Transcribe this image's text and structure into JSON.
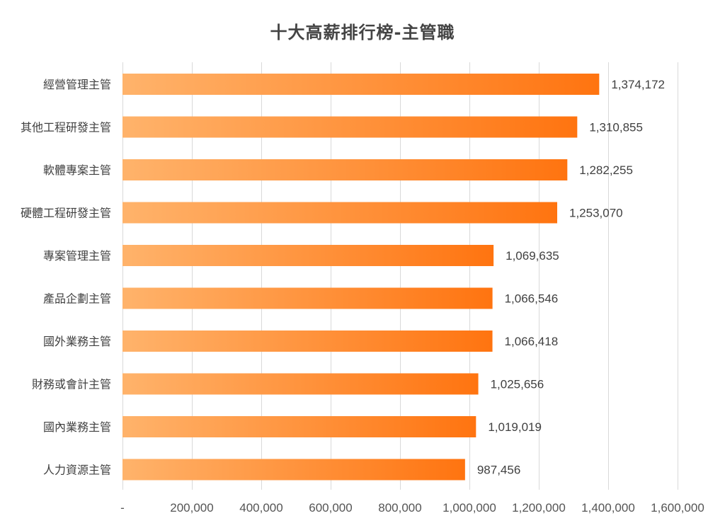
{
  "chart_data": {
    "type": "bar",
    "orientation": "horizontal",
    "title": "十大高薪排行榜-主管職",
    "xlabel": "",
    "ylabel": "",
    "categories": [
      "經營管理主管",
      "其他工程研發主管",
      "軟體專案主管",
      "硬體工程研發主管",
      "專案管理主管",
      "產品企劃主管",
      "國外業務主管",
      "財務或會計主管",
      "國內業務主管",
      "人力資源主管"
    ],
    "values": [
      1374172,
      1310855,
      1282255,
      1253070,
      1069635,
      1066546,
      1066418,
      1025656,
      1019019,
      987456
    ],
    "data_labels": [
      "1,374,172",
      "1,310,855",
      "1,282,255",
      "1,253,070",
      "1,069,635",
      "1,066,546",
      "1,066,418",
      "1,025,656",
      "1,019,019",
      "987,456"
    ],
    "xlim": [
      0,
      1600000
    ],
    "x_ticks": [
      0,
      200000,
      400000,
      600000,
      800000,
      1000000,
      1200000,
      1400000,
      1600000
    ],
    "x_tick_labels": [
      "-",
      "200,000",
      "400,000",
      "600,000",
      "800,000",
      "1,000,000",
      "1,200,000",
      "1,400,000",
      "1,600,000"
    ],
    "grid": true,
    "legend": "none",
    "colors": {
      "bar_gradient_start": "#ffb36b",
      "bar_gradient_end": "#ff7410",
      "gridline": "#d9d9d9",
      "text": "#404040"
    }
  }
}
